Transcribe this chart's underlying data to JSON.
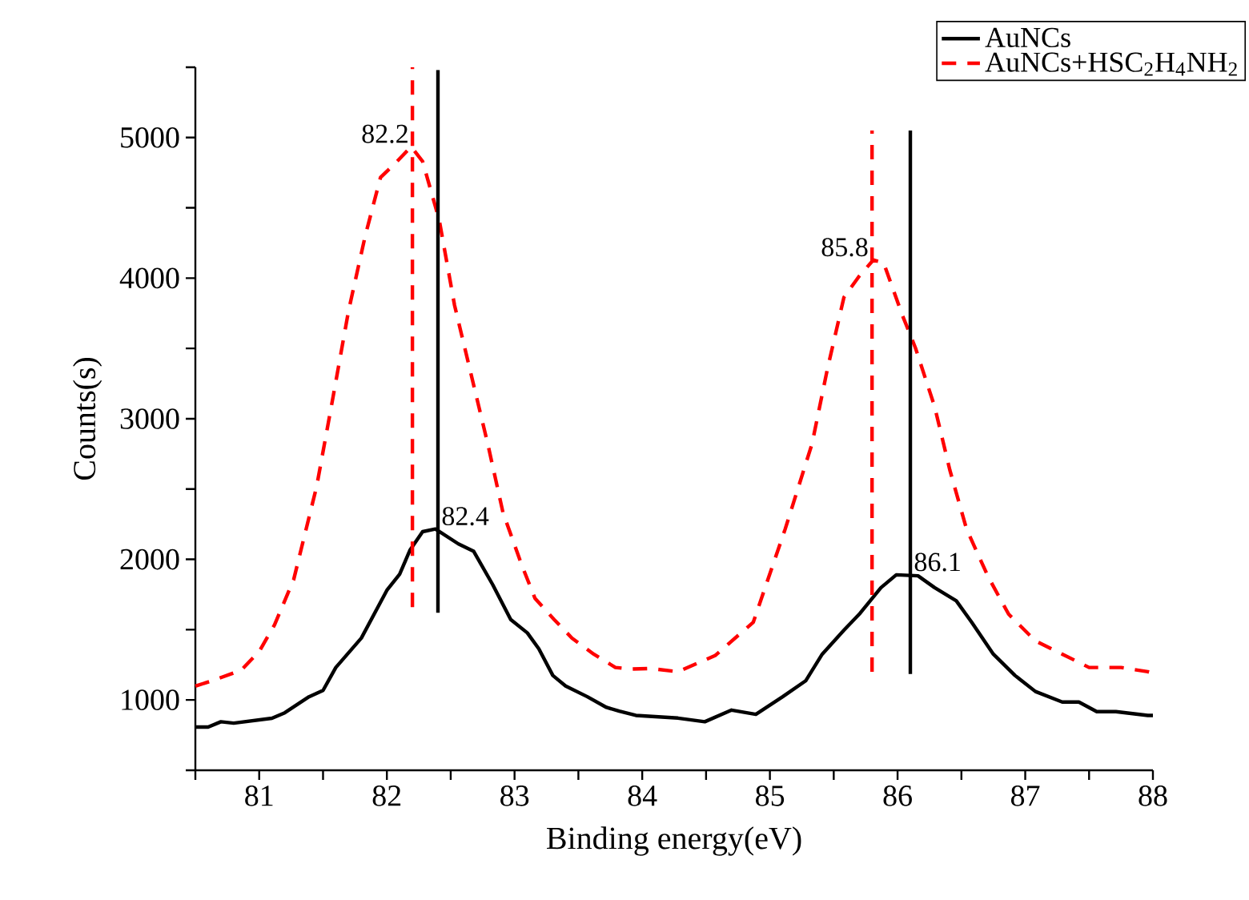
{
  "chart_data": {
    "type": "line",
    "xlabel": "Binding energy(eV)",
    "ylabel": "Counts(s)",
    "xlim": [
      80.5,
      88
    ],
    "ylim": [
      500,
      5500
    ],
    "xticks": [
      {
        "value": 80.5,
        "label": null
      },
      81,
      {
        "value": 81.5,
        "label": null
      },
      82,
      {
        "value": 82.5,
        "label": null
      },
      83,
      {
        "value": 83.5,
        "label": null
      },
      84,
      {
        "value": 84.5,
        "label": null
      },
      85,
      {
        "value": 85.5,
        "label": null
      },
      86,
      {
        "value": 86.5,
        "label": null
      },
      87,
      {
        "value": 87.5,
        "label": null
      },
      88
    ],
    "yticks": [
      {
        "value": 500,
        "label": null
      },
      1000,
      {
        "value": 1500,
        "label": null
      },
      2000,
      {
        "value": 2500,
        "label": null
      },
      3000,
      {
        "value": 3500,
        "label": null
      },
      4000,
      {
        "value": 4500,
        "label": null
      },
      5000,
      {
        "value": 5500,
        "label": null
      }
    ],
    "grid": false,
    "legend": "top right",
    "marker": "none",
    "series": [
      {
        "name": "AuNCs",
        "color": "#000000",
        "line_style": "solid",
        "x": [
          80.5,
          80.6,
          80.7,
          80.8,
          81.1,
          81.2,
          81.39,
          81.5,
          81.6,
          81.8,
          81.9,
          82.0,
          82.1,
          82.18,
          82.28,
          82.38,
          82.56,
          82.68,
          82.83,
          82.97,
          83.1,
          83.19,
          83.3,
          83.4,
          83.57,
          83.72,
          83.82,
          83.95,
          84.28,
          84.49,
          84.7,
          84.89,
          85.1,
          85.28,
          85.41,
          85.58,
          85.7,
          85.87,
          85.99,
          86.16,
          86.29,
          86.46,
          86.58,
          86.75,
          86.92,
          87.08,
          87.29,
          87.42,
          87.56,
          87.71,
          87.96,
          88.0
        ],
        "values": [
          807,
          807,
          845,
          835,
          870,
          909,
          1023,
          1068,
          1231,
          1440,
          1610,
          1780,
          1894,
          2064,
          2197,
          2216,
          2110,
          2057,
          1818,
          1572,
          1477,
          1364,
          1174,
          1099,
          1023,
          947,
          920,
          890,
          871,
          845,
          928,
          898,
          1023,
          1136,
          1326,
          1496,
          1610,
          1799,
          1890,
          1883,
          1799,
          1705,
          1553,
          1326,
          1174,
          1060,
          985,
          985,
          917,
          917,
          890,
          890
        ]
      },
      {
        "name": "AuNCs+HSC$_{2}$H$_{4}$NH$_{2}$",
        "color": "#ff0000",
        "line_style": "dashed",
        "x": [
          80.5,
          80.63,
          80.86,
          81.0,
          81.12,
          81.27,
          81.45,
          81.58,
          81.7,
          81.83,
          81.95,
          82.08,
          82.19,
          82.28,
          82.41,
          82.53,
          82.66,
          82.79,
          82.91,
          83.06,
          83.16,
          83.31,
          83.45,
          83.62,
          83.79,
          83.91,
          84.06,
          84.28,
          84.57,
          84.87,
          85.12,
          85.33,
          85.45,
          85.58,
          85.7,
          85.81,
          85.89,
          86.04,
          86.14,
          86.29,
          86.41,
          86.54,
          86.71,
          86.87,
          87.08,
          87.29,
          87.5,
          87.75,
          87.96,
          88.0
        ],
        "values": [
          1099,
          1136,
          1212,
          1345,
          1534,
          1856,
          2519,
          3163,
          3769,
          4299,
          4716,
          4830,
          4935,
          4830,
          4413,
          3807,
          3314,
          2822,
          2330,
          1951,
          1723,
          1572,
          1440,
          1326,
          1231,
          1220,
          1224,
          1201,
          1315,
          1553,
          2216,
          2822,
          3352,
          3864,
          4015,
          4129,
          4110,
          3731,
          3504,
          3087,
          2633,
          2216,
          1875,
          1610,
          1420,
          1326,
          1231,
          1231,
          1201,
          1190
        ]
      },
      {
        "color": "#ff0000",
        "line_style": "dashed",
        "x": [
          82.2,
          82.2
        ],
        "values": [
          1660,
          5500
        ]
      },
      {
        "color": "#000000",
        "line_style": "solid",
        "x": [
          82.4,
          82.4
        ],
        "values": [
          1620,
          5480
        ]
      },
      {
        "color": "#ff0000",
        "line_style": "dashed",
        "x": [
          85.8,
          85.8
        ],
        "values": [
          1200,
          5050
        ]
      },
      {
        "color": "#000000",
        "line_style": "solid",
        "x": [
          86.1,
          86.1
        ],
        "values": [
          1185,
          5050
        ]
      }
    ],
    "annotations": [
      {
        "text": "82.2",
        "x": 82.2,
        "y": 4935
      },
      {
        "text": "82.4",
        "x": 82.4,
        "y": 2216
      },
      {
        "text": "85.8",
        "x": 85.8,
        "y": 4129
      },
      {
        "text": "86.1",
        "x": 86.1,
        "y": 1890
      }
    ]
  }
}
